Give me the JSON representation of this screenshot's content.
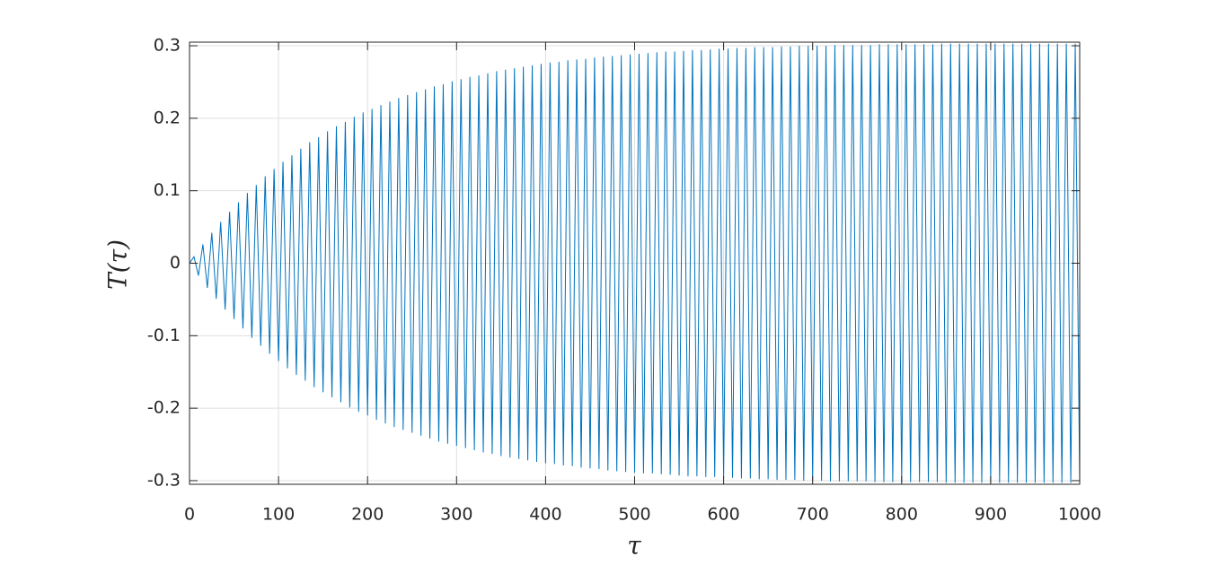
{
  "chart_data": {
    "type": "line",
    "x_label": "τ",
    "y_label": "T(τ)",
    "xlim": [
      0,
      1000
    ],
    "ylim": [
      -0.305,
      0.305
    ],
    "xticks": [
      0,
      100,
      200,
      300,
      400,
      500,
      600,
      700,
      800,
      900,
      1000
    ],
    "yticks": [
      -0.3,
      -0.2,
      -0.1,
      0,
      0.1,
      0.2,
      0.3
    ],
    "grid": true,
    "series": [
      {
        "color": "#0072bd",
        "x": [
          0,
          5,
          10,
          15,
          20,
          25,
          30,
          35,
          40,
          45,
          50,
          55,
          60,
          65,
          70,
          75,
          80,
          85,
          90,
          95,
          100,
          105,
          110,
          115,
          120,
          125,
          130,
          135,
          140,
          145,
          150,
          155,
          160,
          165,
          170,
          175,
          180,
          185,
          190,
          195,
          200,
          205,
          210,
          215,
          220,
          225,
          230,
          235,
          240,
          245,
          250,
          255,
          260,
          265,
          270,
          275,
          280,
          285,
          290,
          295,
          300,
          305,
          310,
          315,
          320,
          325,
          330,
          335,
          340,
          345,
          350,
          355,
          360,
          365,
          370,
          375,
          380,
          385,
          390,
          395,
          400,
          405,
          410,
          415,
          420,
          425,
          430,
          435,
          440,
          445,
          450,
          455,
          460,
          465,
          470,
          475,
          480,
          485,
          490,
          495,
          500,
          505,
          510,
          515,
          520,
          525,
          530,
          535,
          540,
          545,
          550,
          555,
          560,
          565,
          570,
          575,
          580,
          585,
          590,
          595,
          600,
          605,
          610,
          615,
          620,
          625,
          630,
          635,
          640,
          645,
          650,
          655,
          660,
          665,
          670,
          675,
          680,
          685,
          690,
          695,
          700,
          705,
          710,
          715,
          720,
          725,
          730,
          735,
          740,
          745,
          750,
          755,
          760,
          765,
          770,
          775,
          780,
          785,
          790,
          795,
          800,
          805,
          810,
          815,
          820,
          825,
          830,
          835,
          840,
          845,
          850,
          855,
          860,
          865,
          870,
          875,
          880,
          885,
          890,
          895,
          900,
          905,
          910,
          915,
          920,
          925,
          930,
          935,
          940,
          945,
          950,
          955,
          960,
          965,
          970,
          975,
          980,
          985,
          990,
          995,
          1000
        ],
        "values": [
          0,
          0.009,
          -0.017,
          0.026,
          -0.034,
          0.042,
          -0.049,
          0.057,
          -0.064,
          0.071,
          -0.077,
          0.084,
          -0.09,
          0.097,
          -0.103,
          0.108,
          -0.114,
          0.12,
          -0.125,
          0.13,
          -0.135,
          0.14,
          -0.145,
          0.149,
          -0.154,
          0.158,
          -0.162,
          0.167,
          -0.171,
          0.174,
          -0.178,
          0.182,
          -0.185,
          0.189,
          -0.192,
          0.195,
          -0.199,
          0.202,
          -0.205,
          0.208,
          -0.21,
          0.213,
          -0.216,
          0.218,
          -0.221,
          0.223,
          -0.226,
          0.228,
          -0.23,
          0.232,
          -0.234,
          0.236,
          -0.238,
          0.24,
          -0.242,
          0.244,
          -0.246,
          0.247,
          -0.249,
          0.251,
          -0.252,
          0.254,
          -0.255,
          0.257,
          -0.258,
          0.259,
          -0.261,
          0.262,
          -0.263,
          0.265,
          -0.266,
          0.267,
          -0.268,
          0.269,
          -0.27,
          0.271,
          -0.272,
          0.273,
          -0.274,
          0.275,
          -0.276,
          0.277,
          -0.277,
          0.278,
          -0.279,
          0.28,
          -0.28,
          0.281,
          -0.282,
          0.282,
          -0.283,
          0.284,
          -0.284,
          0.285,
          -0.286,
          0.286,
          -0.287,
          0.287,
          -0.288,
          0.288,
          -0.289,
          0.289,
          -0.29,
          0.29,
          -0.29,
          0.291,
          -0.291,
          0.292,
          -0.292,
          0.292,
          -0.293,
          0.293,
          -0.294,
          0.294,
          -0.294,
          0.294,
          -0.295,
          0.295,
          -0.295,
          0.296,
          -0.296,
          0.296,
          -0.296,
          0.297,
          -0.297,
          0.297,
          -0.297,
          0.298,
          -0.298,
          0.298,
          -0.298,
          0.298,
          -0.299,
          0.299,
          -0.299,
          0.299,
          -0.299,
          0.3,
          -0.3,
          0.3,
          -0.3,
          0.3,
          -0.3,
          0.3,
          -0.301,
          0.301,
          -0.301,
          0.301,
          -0.301,
          0.301,
          -0.301,
          0.301,
          -0.301,
          0.301,
          -0.302,
          0.302,
          -0.302,
          0.302,
          -0.302,
          0.302,
          -0.302,
          0.302,
          -0.302,
          0.302,
          -0.302,
          0.302,
          -0.302,
          0.302,
          -0.302,
          0.303,
          -0.303,
          0.303,
          -0.303,
          0.303,
          -0.303,
          0.303,
          -0.303,
          0.303,
          -0.303,
          0.303,
          -0.303,
          0.303,
          -0.303,
          0.303,
          -0.303,
          0.303,
          -0.303,
          0.303,
          -0.303,
          0.303,
          -0.303,
          0.303,
          -0.303,
          0.303,
          -0.303,
          0.303,
          -0.303,
          0.303,
          -0.303,
          0.303,
          -0.303
        ]
      }
    ]
  }
}
